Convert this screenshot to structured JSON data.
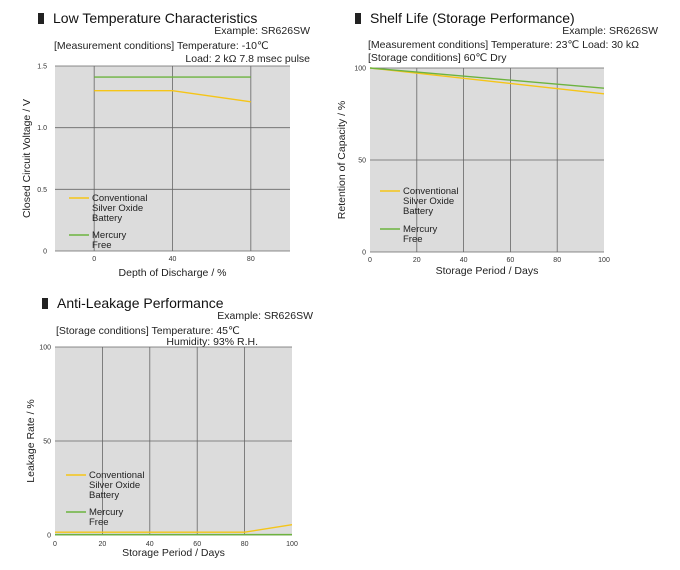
{
  "colors": {
    "plot_bg": "#dcdcdc",
    "grid": "#666666",
    "conventional": "#f5c518",
    "mercury_free": "#6db33f"
  },
  "chart_data": [
    {
      "id": "low-temp",
      "type": "line",
      "title": "Low Temperature Characteristics",
      "example": "Example: SR626SW",
      "conditions": [
        "[Measurement conditions] Temperature: -10℃",
        "Load: 2 kΩ 7.8 msec pulse"
      ],
      "xlabel": "Depth of Discharge / %",
      "ylabel": "Closed Circuit Voltage / V",
      "xlim": [
        -20,
        100
      ],
      "ylim": [
        0,
        1.5
      ],
      "xticks": [
        0,
        40,
        80
      ],
      "xtick_labels": [
        "0",
        "40",
        "80"
      ],
      "yticks": [
        0,
        0.5,
        1.0,
        1.5
      ],
      "ytick_labels": [
        "0",
        "0.5",
        "1.0",
        "1.5"
      ],
      "grid": true,
      "legend": {
        "position": "bottom-left",
        "entries": [
          {
            "lines": [
              "Conventional",
              "Silver Oxide",
              "Battery"
            ],
            "series": "Conventional Silver Oxide Battery"
          },
          {
            "lines": [
              "Mercury",
              "Free"
            ],
            "series": "Mercury Free"
          }
        ]
      },
      "series": [
        {
          "name": "Conventional Silver Oxide Battery",
          "x": [
            0,
            40,
            80
          ],
          "y": [
            1.3,
            1.3,
            1.21
          ]
        },
        {
          "name": "Mercury Free",
          "x": [
            0,
            40,
            80
          ],
          "y": [
            1.41,
            1.41,
            1.41
          ]
        }
      ]
    },
    {
      "id": "shelf-life",
      "type": "line",
      "title": "Shelf Life (Storage Performance)",
      "example": "Example: SR626SW",
      "conditions": [
        "[Measurement conditions] Temperature: 23℃ Load: 30 kΩ",
        "[Storage conditions] 60℃ Dry"
      ],
      "xlabel": "Storage Period / Days",
      "ylabel": "Retention of Capacity / %",
      "xlim": [
        0,
        100
      ],
      "ylim": [
        0,
        100
      ],
      "xticks": [
        0,
        20,
        40,
        60,
        80,
        100
      ],
      "xtick_labels": [
        "0",
        "20",
        "40",
        "60",
        "80",
        "100"
      ],
      "yticks": [
        0,
        50,
        100
      ],
      "ytick_labels": [
        "0",
        "50",
        "100"
      ],
      "grid": true,
      "legend": {
        "position": "bottom-left",
        "entries": [
          {
            "lines": [
              "Conventional",
              "Silver Oxide",
              "Battery"
            ],
            "series": "Conventional Silver Oxide Battery"
          },
          {
            "lines": [
              "Mercury",
              "Free"
            ],
            "series": "Mercury Free"
          }
        ]
      },
      "series": [
        {
          "name": "Conventional Silver Oxide Battery",
          "x": [
            0,
            100
          ],
          "y": [
            100,
            86
          ]
        },
        {
          "name": "Mercury Free",
          "x": [
            0,
            100
          ],
          "y": [
            100,
            89
          ]
        }
      ]
    },
    {
      "id": "anti-leakage",
      "type": "line",
      "title": "Anti-Leakage Performance",
      "example": "Example: SR626SW",
      "conditions": [
        "[Storage conditions] Temperature: 45℃",
        "Humidity: 93% R.H."
      ],
      "xlabel": "Storage Period / Days",
      "ylabel": "Leakage Rate / %",
      "xlim": [
        0,
        100
      ],
      "ylim": [
        0,
        100
      ],
      "xticks": [
        0,
        20,
        40,
        60,
        80,
        100
      ],
      "xtick_labels": [
        "0",
        "20",
        "40",
        "60",
        "80",
        "100"
      ],
      "yticks": [
        0,
        50,
        100
      ],
      "ytick_labels": [
        "0",
        "50",
        "100"
      ],
      "grid": true,
      "legend": {
        "position": "bottom-left",
        "entries": [
          {
            "lines": [
              "Conventional",
              "Silver Oxide",
              "Battery"
            ],
            "series": "Conventional Silver Oxide Battery"
          },
          {
            "lines": [
              "Mercury",
              "Free"
            ],
            "series": "Mercury Free"
          }
        ]
      },
      "series": [
        {
          "name": "Conventional Silver Oxide Battery",
          "x": [
            0,
            80,
            100
          ],
          "y": [
            1.5,
            1.5,
            5.5
          ]
        },
        {
          "name": "Mercury Free",
          "x": [
            0,
            100
          ],
          "y": [
            0.2,
            0.2
          ]
        }
      ]
    }
  ]
}
